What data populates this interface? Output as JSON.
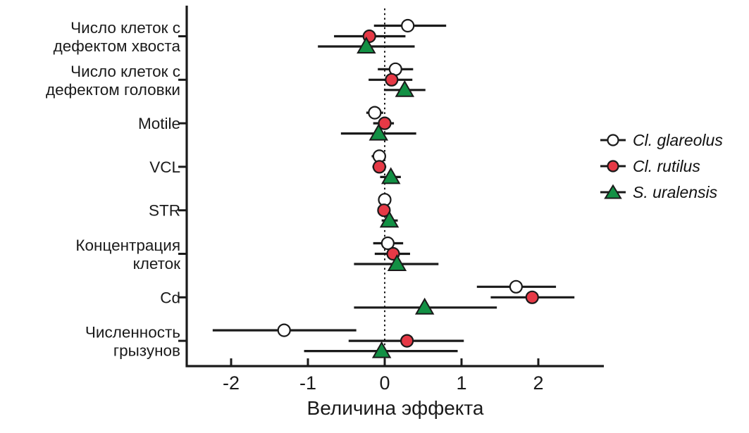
{
  "figure": {
    "background": "#ffffff"
  },
  "colors": {
    "axis": "#1a1a1a",
    "error_bar": "#1a1a1a",
    "zero_line": "#1a1a1a",
    "text": "#1a1a1a",
    "glareolus_fill": "#ffffff",
    "rutilus_fill": "#e63946",
    "uralensis_fill": "#129044",
    "marker_stroke": "#1a1a1a"
  },
  "chart_data": {
    "type": "scatter",
    "subtype": "forest-plot-with-error-bars",
    "title": "",
    "xlabel": "Величина эффекта",
    "ylabel": "",
    "xlim": [
      -2.6,
      2.85
    ],
    "x_ticks": [
      -2,
      -1,
      0,
      1,
      2
    ],
    "zero_line": 0,
    "grid": false,
    "legend_position": "right",
    "categories": [
      [
        "Число клеток с",
        "дефектом хвоста"
      ],
      [
        "Число клеток с",
        "дефектом головки"
      ],
      [
        "Motile"
      ],
      [
        "VCL"
      ],
      [
        "STR"
      ],
      [
        "Концентрация",
        "клеток"
      ],
      [
        "Cd"
      ],
      [
        "Численность",
        "грызунов"
      ]
    ],
    "series": [
      {
        "name": "Cl. glareolus",
        "marker": "circle",
        "fill": "#ffffff",
        "stroke": "#1a1a1a",
        "points": [
          {
            "value": 0.3,
            "lo": -0.14,
            "hi": 0.8
          },
          {
            "value": 0.14,
            "lo": -0.09,
            "hi": 0.37
          },
          {
            "value": -0.13,
            "lo": -0.24,
            "hi": -0.02
          },
          {
            "value": -0.07,
            "lo": -0.17,
            "hi": 0.01
          },
          {
            "value": 0.0,
            "lo": -0.08,
            "hi": 0.08
          },
          {
            "value": 0.04,
            "lo": -0.15,
            "hi": 0.24
          },
          {
            "value": 1.71,
            "lo": 1.2,
            "hi": 2.23
          },
          {
            "value": -1.31,
            "lo": -2.24,
            "hi": -0.37
          }
        ]
      },
      {
        "name": "Cl. rutilus",
        "marker": "circle",
        "fill": "#e63946",
        "stroke": "#1a1a1a",
        "points": [
          {
            "value": -0.2,
            "lo": -0.66,
            "hi": 0.27
          },
          {
            "value": 0.09,
            "lo": -0.21,
            "hi": 0.36
          },
          {
            "value": 0.0,
            "lo": -0.15,
            "hi": 0.12
          },
          {
            "value": -0.07,
            "lo": -0.16,
            "hi": 0.02
          },
          {
            "value": -0.01,
            "lo": -0.09,
            "hi": 0.07
          },
          {
            "value": 0.11,
            "lo": -0.13,
            "hi": 0.33
          },
          {
            "value": 1.92,
            "lo": 1.38,
            "hi": 2.47
          },
          {
            "value": 0.29,
            "lo": -0.47,
            "hi": 1.03
          }
        ]
      },
      {
        "name": "S. uralensis",
        "marker": "triangle",
        "fill": "#129044",
        "stroke": "#1a1a1a",
        "points": [
          {
            "value": -0.24,
            "lo": -0.87,
            "hi": 0.39
          },
          {
            "value": 0.26,
            "lo": -0.01,
            "hi": 0.53
          },
          {
            "value": -0.08,
            "lo": -0.57,
            "hi": 0.41
          },
          {
            "value": 0.08,
            "lo": -0.06,
            "hi": 0.21
          },
          {
            "value": 0.06,
            "lo": -0.04,
            "hi": 0.17
          },
          {
            "value": 0.16,
            "lo": -0.4,
            "hi": 0.7
          },
          {
            "value": 0.52,
            "lo": -0.4,
            "hi": 1.46
          },
          {
            "value": -0.04,
            "lo": -1.05,
            "hi": 0.95
          }
        ]
      }
    ]
  }
}
